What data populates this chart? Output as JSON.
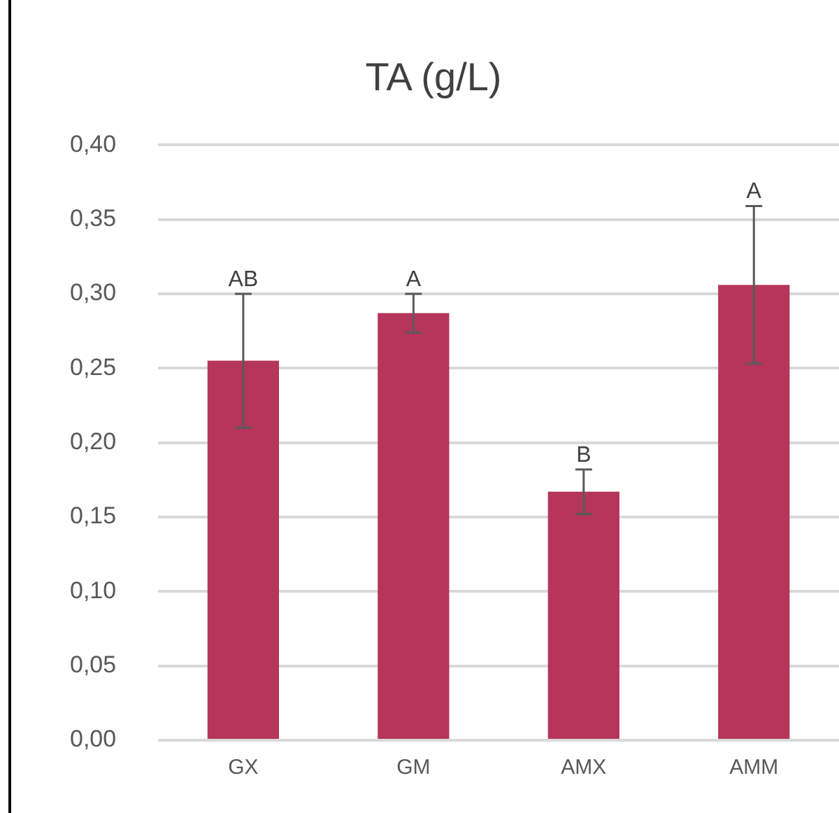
{
  "chart_data": {
    "type": "bar",
    "title": "TA (g/L)",
    "categories": [
      "GX",
      "GM",
      "AMX",
      "AMM"
    ],
    "values": [
      0.255,
      0.287,
      0.167,
      0.306
    ],
    "errors": [
      0.045,
      0.013,
      0.015,
      0.053
    ],
    "color": "#b5365a",
    "ylim": [
      0,
      0.4
    ],
    "yticks": [
      {
        "value": 0,
        "label": "0,00"
      },
      {
        "value": 0.05,
        "label": "0,05"
      },
      {
        "value": 0.1,
        "label": "0,10"
      },
      {
        "value": 0.15,
        "label": "0,15"
      },
      {
        "value": 0.2,
        "label": "0,20"
      },
      {
        "value": 0.25,
        "label": "0,25"
      },
      {
        "value": 0.3,
        "label": "0,30"
      },
      {
        "value": 0.35,
        "label": "0,35"
      },
      {
        "value": 0.4,
        "label": "0,40"
      }
    ],
    "grid": "y",
    "legend": false,
    "annotations": [
      {
        "text": "AB",
        "x": "GX",
        "y": 0.3
      },
      {
        "text": "A",
        "x": "GM",
        "y": 0.3
      },
      {
        "text": "B",
        "x": "AMX",
        "y": 0.182
      },
      {
        "text": "A",
        "x": "AMM",
        "y": 0.359
      }
    ]
  }
}
